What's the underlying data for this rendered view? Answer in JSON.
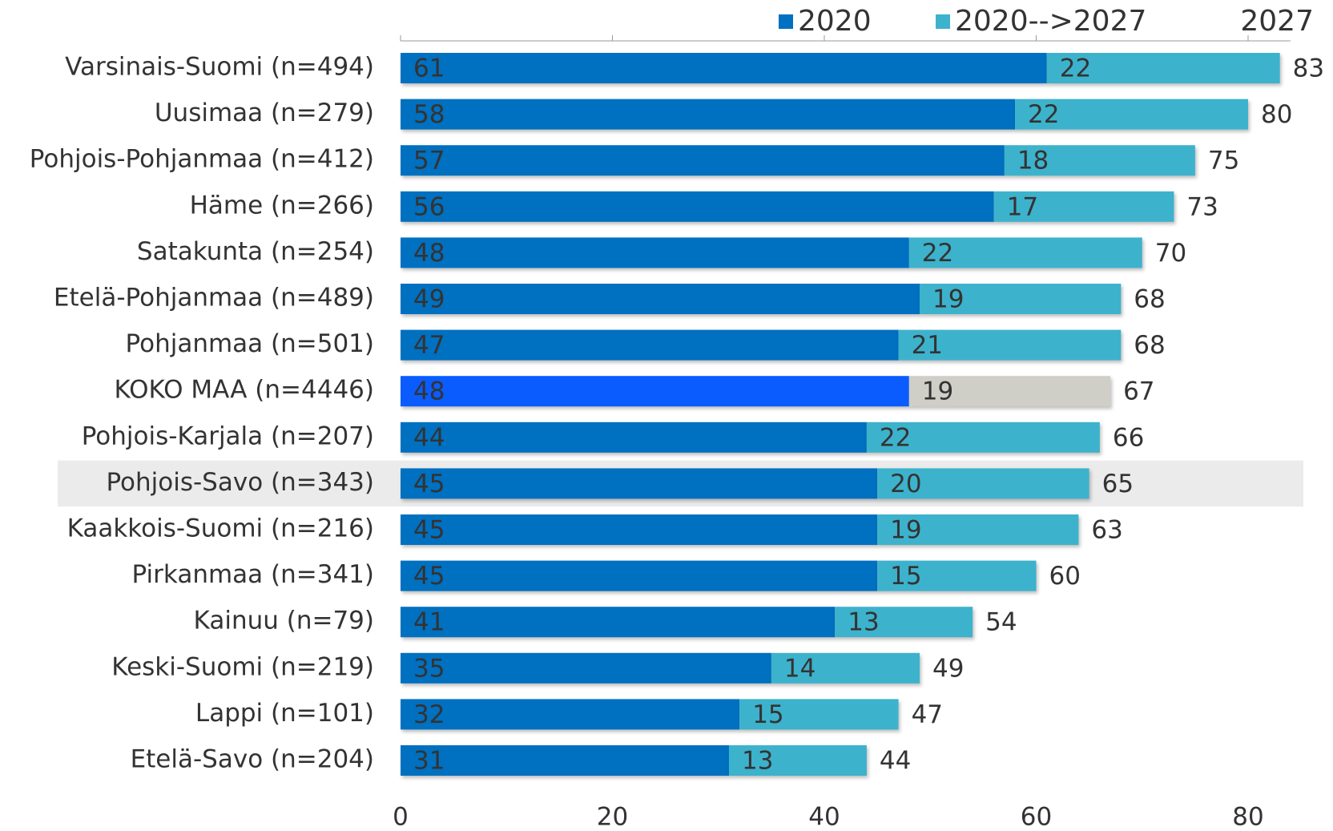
{
  "chart_data": {
    "type": "stacked-barh",
    "categories": [
      "Varsinais-Suomi (n=494)",
      "Uusimaa (n=279)",
      "Pohjois-Pohjanmaa (n=412)",
      "Häme (n=266)",
      "Satakunta (n=254)",
      "Etelä-Pohjanmaa (n=489)",
      "Pohjanmaa (n=501)",
      "KOKO MAA (n=4446)",
      "Pohjois-Karjala (n=207)",
      "Pohjois-Savo (n=343)",
      "Kaakkois-Suomi (n=216)",
      "Pirkanmaa (n=341)",
      "Kainuu (n=79)",
      "Keski-Suomi (n=219)",
      "Lappi (n=101)",
      "Etelä-Savo (n=204)"
    ],
    "series": [
      {
        "name": "2020",
        "color": "#0070c0",
        "point_colors": {
          "7": "#0a5cff"
        },
        "values": [
          61,
          58,
          57,
          56,
          48,
          49,
          47,
          48,
          44,
          45,
          45,
          45,
          41,
          35,
          32,
          31
        ]
      },
      {
        "name": "2020-->2027",
        "color": "#3db2cc",
        "point_colors": {
          "7": "#cfcfc8"
        },
        "values": [
          22,
          22,
          18,
          17,
          22,
          19,
          21,
          19,
          22,
          20,
          19,
          15,
          13,
          14,
          15,
          13
        ]
      }
    ],
    "totals_name": "2027",
    "totals": [
      83,
      80,
      75,
      73,
      70,
      68,
      68,
      67,
      66,
      65,
      63,
      60,
      54,
      49,
      47,
      44
    ],
    "highlight_band": 9,
    "highlight_color": "#ebebeb",
    "xlim": [
      0,
      84
    ],
    "xticks": [
      0,
      20,
      40,
      60,
      80
    ]
  }
}
